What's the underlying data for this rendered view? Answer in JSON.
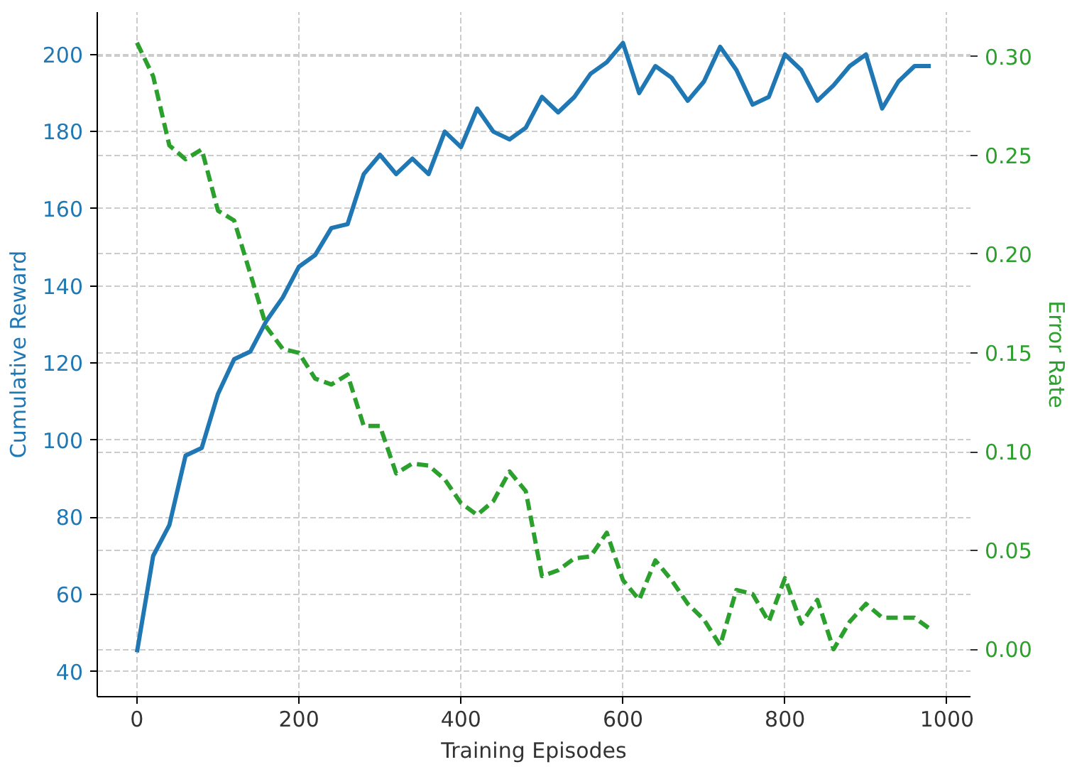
{
  "chart_data": {
    "type": "line",
    "xlabel": "Training Episodes",
    "ylabel": "Cumulative Reward",
    "y2label": "Error Rate",
    "x": [
      0,
      20,
      40,
      60,
      80,
      100,
      120,
      140,
      160,
      180,
      200,
      220,
      240,
      260,
      280,
      300,
      320,
      340,
      360,
      380,
      400,
      420,
      440,
      460,
      480,
      500,
      520,
      540,
      560,
      580,
      600,
      620,
      640,
      660,
      680,
      700,
      720,
      740,
      760,
      780,
      800,
      820,
      840,
      860,
      880,
      900,
      920,
      940,
      960,
      980
    ],
    "series": [
      {
        "color": "#1f77b4",
        "line_style": "solid",
        "values": [
          45,
          70,
          78,
          96,
          98,
          112,
          121,
          123,
          131,
          137,
          145,
          148,
          155,
          156,
          169,
          174,
          169,
          173,
          169,
          180,
          176,
          186,
          180,
          178,
          181,
          189,
          185,
          189,
          195,
          198,
          203,
          190,
          197,
          194,
          188,
          193,
          202,
          196,
          187,
          189,
          200,
          196,
          188,
          192,
          197,
          200,
          186,
          193,
          197,
          197
        ]
      },
      {
        "color": "#2ca02c",
        "line_style": "dashed",
        "axis": "y2",
        "values": [
          0.307,
          0.29,
          0.255,
          0.248,
          0.253,
          0.222,
          0.217,
          0.19,
          0.163,
          0.152,
          0.15,
          0.137,
          0.134,
          0.139,
          0.113,
          0.113,
          0.089,
          0.094,
          0.093,
          0.086,
          0.074,
          0.068,
          0.075,
          0.09,
          0.08,
          0.037,
          0.04,
          0.046,
          0.047,
          0.059,
          0.035,
          0.025,
          0.045,
          0.035,
          0.023,
          0.015,
          0.002,
          0.03,
          0.028,
          0.014,
          0.036,
          0.013,
          0.025,
          0.0,
          0.014,
          0.023,
          0.016,
          0.016,
          0.016,
          0.01
        ]
      }
    ],
    "xlim": [
      -49,
      1029
    ],
    "xticks": [
      0,
      200,
      400,
      600,
      800,
      1000
    ],
    "ylim": [
      33.5,
      211
    ],
    "yticks": [
      40,
      60,
      80,
      100,
      120,
      140,
      160,
      180,
      200
    ],
    "y2lim": [
      -0.024,
      0.3225
    ],
    "y2ticks": [
      {
        "value": 0,
        "label": "0.00"
      },
      {
        "value": 0.05,
        "label": "0.05"
      },
      {
        "value": 0.1,
        "label": "0.10"
      },
      {
        "value": 0.15,
        "label": "0.15"
      },
      {
        "value": 0.2,
        "label": "0.20"
      },
      {
        "value": 0.25,
        "label": "0.25"
      },
      {
        "value": 0.3,
        "label": "0.30"
      }
    ],
    "grid": true
  }
}
